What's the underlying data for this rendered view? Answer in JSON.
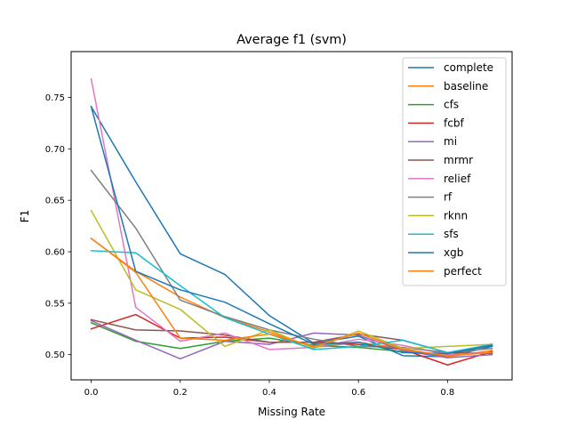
{
  "chart_data": {
    "type": "line",
    "title": "Average f1 (svm)",
    "xlabel": "Missing Rate",
    "ylabel": "F1",
    "xlim": [
      -0.045,
      0.945
    ],
    "ylim": [
      0.4755,
      0.7945
    ],
    "x_ticks": [
      0.0,
      0.2,
      0.4,
      0.6,
      0.8
    ],
    "x_tick_labels": [
      "0.0",
      "0.2",
      "0.4",
      "0.6",
      "0.8"
    ],
    "y_ticks": [
      0.5,
      0.55,
      0.6,
      0.65,
      0.7,
      0.75
    ],
    "y_tick_labels": [
      "0.50",
      "0.55",
      "0.60",
      "0.65",
      "0.70",
      "0.75"
    ],
    "grid": false,
    "legend_position": "top-right",
    "x": [
      0.0,
      0.1,
      0.2,
      0.3,
      0.4,
      0.5,
      0.6,
      0.7,
      0.8,
      0.9
    ],
    "series": [
      {
        "name": "complete",
        "color": "#1f77b4",
        "values": [
          0.741,
          0.668,
          0.598,
          0.578,
          0.538,
          0.511,
          0.518,
          0.499,
          0.498,
          0.508
        ]
      },
      {
        "name": "baseline",
        "color": "#ff7f0e",
        "values": [
          0.613,
          0.581,
          0.556,
          0.536,
          0.522,
          0.507,
          0.512,
          0.506,
          0.498,
          0.504
        ]
      },
      {
        "name": "cfs",
        "color": "#2ca02c",
        "values": [
          0.531,
          0.513,
          0.506,
          0.513,
          0.516,
          0.509,
          0.507,
          0.503,
          0.499,
          0.51
        ]
      },
      {
        "name": "fcbf",
        "color": "#d62728",
        "values": [
          0.525,
          0.539,
          0.516,
          0.517,
          0.512,
          0.512,
          0.51,
          0.505,
          0.49,
          0.503
        ]
      },
      {
        "name": "mi",
        "color": "#9467bd",
        "values": [
          0.533,
          0.514,
          0.496,
          0.513,
          0.51,
          0.521,
          0.519,
          0.504,
          0.497,
          0.5
        ]
      },
      {
        "name": "mrmr",
        "color": "#8c564b",
        "values": [
          0.534,
          0.524,
          0.523,
          0.519,
          0.512,
          0.512,
          0.52,
          0.514,
          0.502,
          0.501
        ]
      },
      {
        "name": "relief",
        "color": "#e377c2",
        "values": [
          0.768,
          0.546,
          0.513,
          0.521,
          0.505,
          0.507,
          0.515,
          0.509,
          0.5,
          0.502
        ]
      },
      {
        "name": "rf",
        "color": "#7f7f7f",
        "values": [
          0.679,
          0.623,
          0.553,
          0.537,
          0.524,
          0.515,
          0.508,
          0.507,
          0.502,
          0.506
        ]
      },
      {
        "name": "rknn",
        "color": "#bcbd22",
        "values": [
          0.64,
          0.563,
          0.544,
          0.508,
          0.524,
          0.506,
          0.523,
          0.506,
          0.508,
          0.51
        ]
      },
      {
        "name": "sfs",
        "color": "#17becf",
        "values": [
          0.601,
          0.599,
          0.567,
          0.536,
          0.52,
          0.505,
          0.508,
          0.514,
          0.502,
          0.51
        ]
      },
      {
        "name": "xgb",
        "color": "#1f77b4",
        "values": [
          0.741,
          0.581,
          0.563,
          0.551,
          0.53,
          0.51,
          0.512,
          0.502,
          0.501,
          0.509
        ]
      },
      {
        "name": "perfect",
        "color": "#ff7f0e",
        "values": [
          0.613,
          0.58,
          0.516,
          0.514,
          0.52,
          0.508,
          0.521,
          0.505,
          0.499,
          0.502
        ]
      }
    ]
  }
}
